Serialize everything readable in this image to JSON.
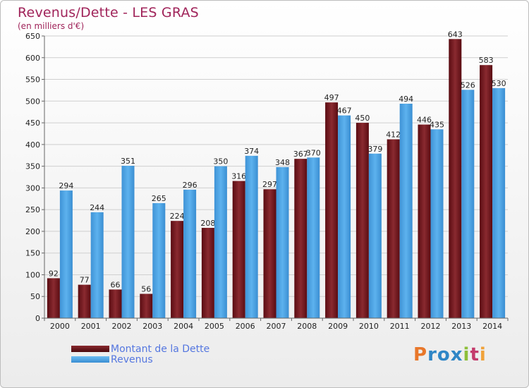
{
  "header": {
    "title": "Revenus/Dette - LES GRAS",
    "subtitle": "(en milliers d'€)"
  },
  "chart_data": {
    "type": "bar",
    "title": "Revenus/Dette - LES GRAS",
    "subtitle": "(en milliers d'€)",
    "categories": [
      "2000",
      "2001",
      "2002",
      "2003",
      "2004",
      "2005",
      "2006",
      "2007",
      "2008",
      "2009",
      "2010",
      "2011",
      "2012",
      "2013",
      "2014"
    ],
    "series": [
      {
        "name": "Montant de la Dette",
        "color": "#7a1c22",
        "values": [
          92,
          77,
          66,
          56,
          224,
          208,
          316,
          297,
          367,
          497,
          450,
          412,
          446,
          643,
          583
        ]
      },
      {
        "name": "Revenus",
        "color": "#4ea3e2",
        "values": [
          294,
          244,
          351,
          265,
          296,
          350,
          374,
          348,
          370,
          467,
          379,
          494,
          435,
          526,
          530
        ]
      }
    ],
    "ylim": [
      0,
      650
    ],
    "yticks": [
      0,
      50,
      100,
      150,
      200,
      250,
      300,
      350,
      400,
      450,
      500,
      550,
      600,
      650
    ],
    "grid": true,
    "legend_position": "bottom-left"
  },
  "legend": {
    "items": [
      "Montant de la Dette",
      "Revenus"
    ]
  },
  "logo": {
    "text": "Proxiti",
    "colors": [
      "#e8772a",
      "#2f86c6",
      "#2f86c6",
      "#2f86c6",
      "#8dbf3a",
      "#c43b6c",
      "#f0a23a"
    ]
  }
}
